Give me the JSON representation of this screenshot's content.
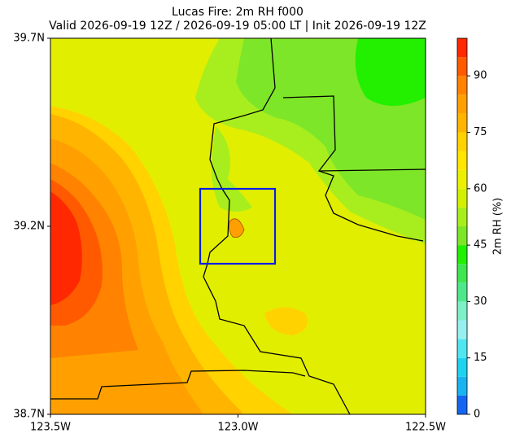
{
  "map": {
    "title": "Lucas Fire: 2m RH f000",
    "subtitle": "Valid 2026-09-19 12Z / 2026-09-19 05:00 LT | Init 2026-09-19 12Z",
    "xlim": [
      -123.5,
      -122.5
    ],
    "ylim": [
      38.7,
      39.7
    ],
    "xticks": [
      {
        "value": -123.5,
        "label": "123.5W"
      },
      {
        "value": -123.0,
        "label": "123.0W"
      },
      {
        "value": -122.5,
        "label": "122.5W"
      }
    ],
    "yticks": [
      {
        "value": 38.7,
        "label": "38.7N"
      },
      {
        "value": 39.2,
        "label": "39.2N"
      },
      {
        "value": 39.7,
        "label": "39.7N"
      }
    ],
    "colorbar": {
      "label": "2m RH (%)",
      "lim": [
        0,
        100
      ],
      "ticks": [
        0,
        15,
        30,
        45,
        60,
        75,
        90
      ],
      "levels": [
        0,
        5,
        10,
        15,
        20,
        25,
        30,
        35,
        40,
        45,
        50,
        55,
        60,
        65,
        70,
        75,
        80,
        85,
        90,
        95,
        100
      ],
      "colors": [
        "#1466f0",
        "#19b4f0",
        "#1ed2f0",
        "#50e6f0",
        "#96f0f0",
        "#7ef0c8",
        "#50e68c",
        "#3ee650",
        "#22f000",
        "#7ee628",
        "#a8ee1e",
        "#d2f000",
        "#ecf000",
        "#ffe600",
        "#ffd200",
        "#ffb400",
        "#ffa000",
        "#ff8200",
        "#ff5a00",
        "#ff2800"
      ]
    }
  }
}
